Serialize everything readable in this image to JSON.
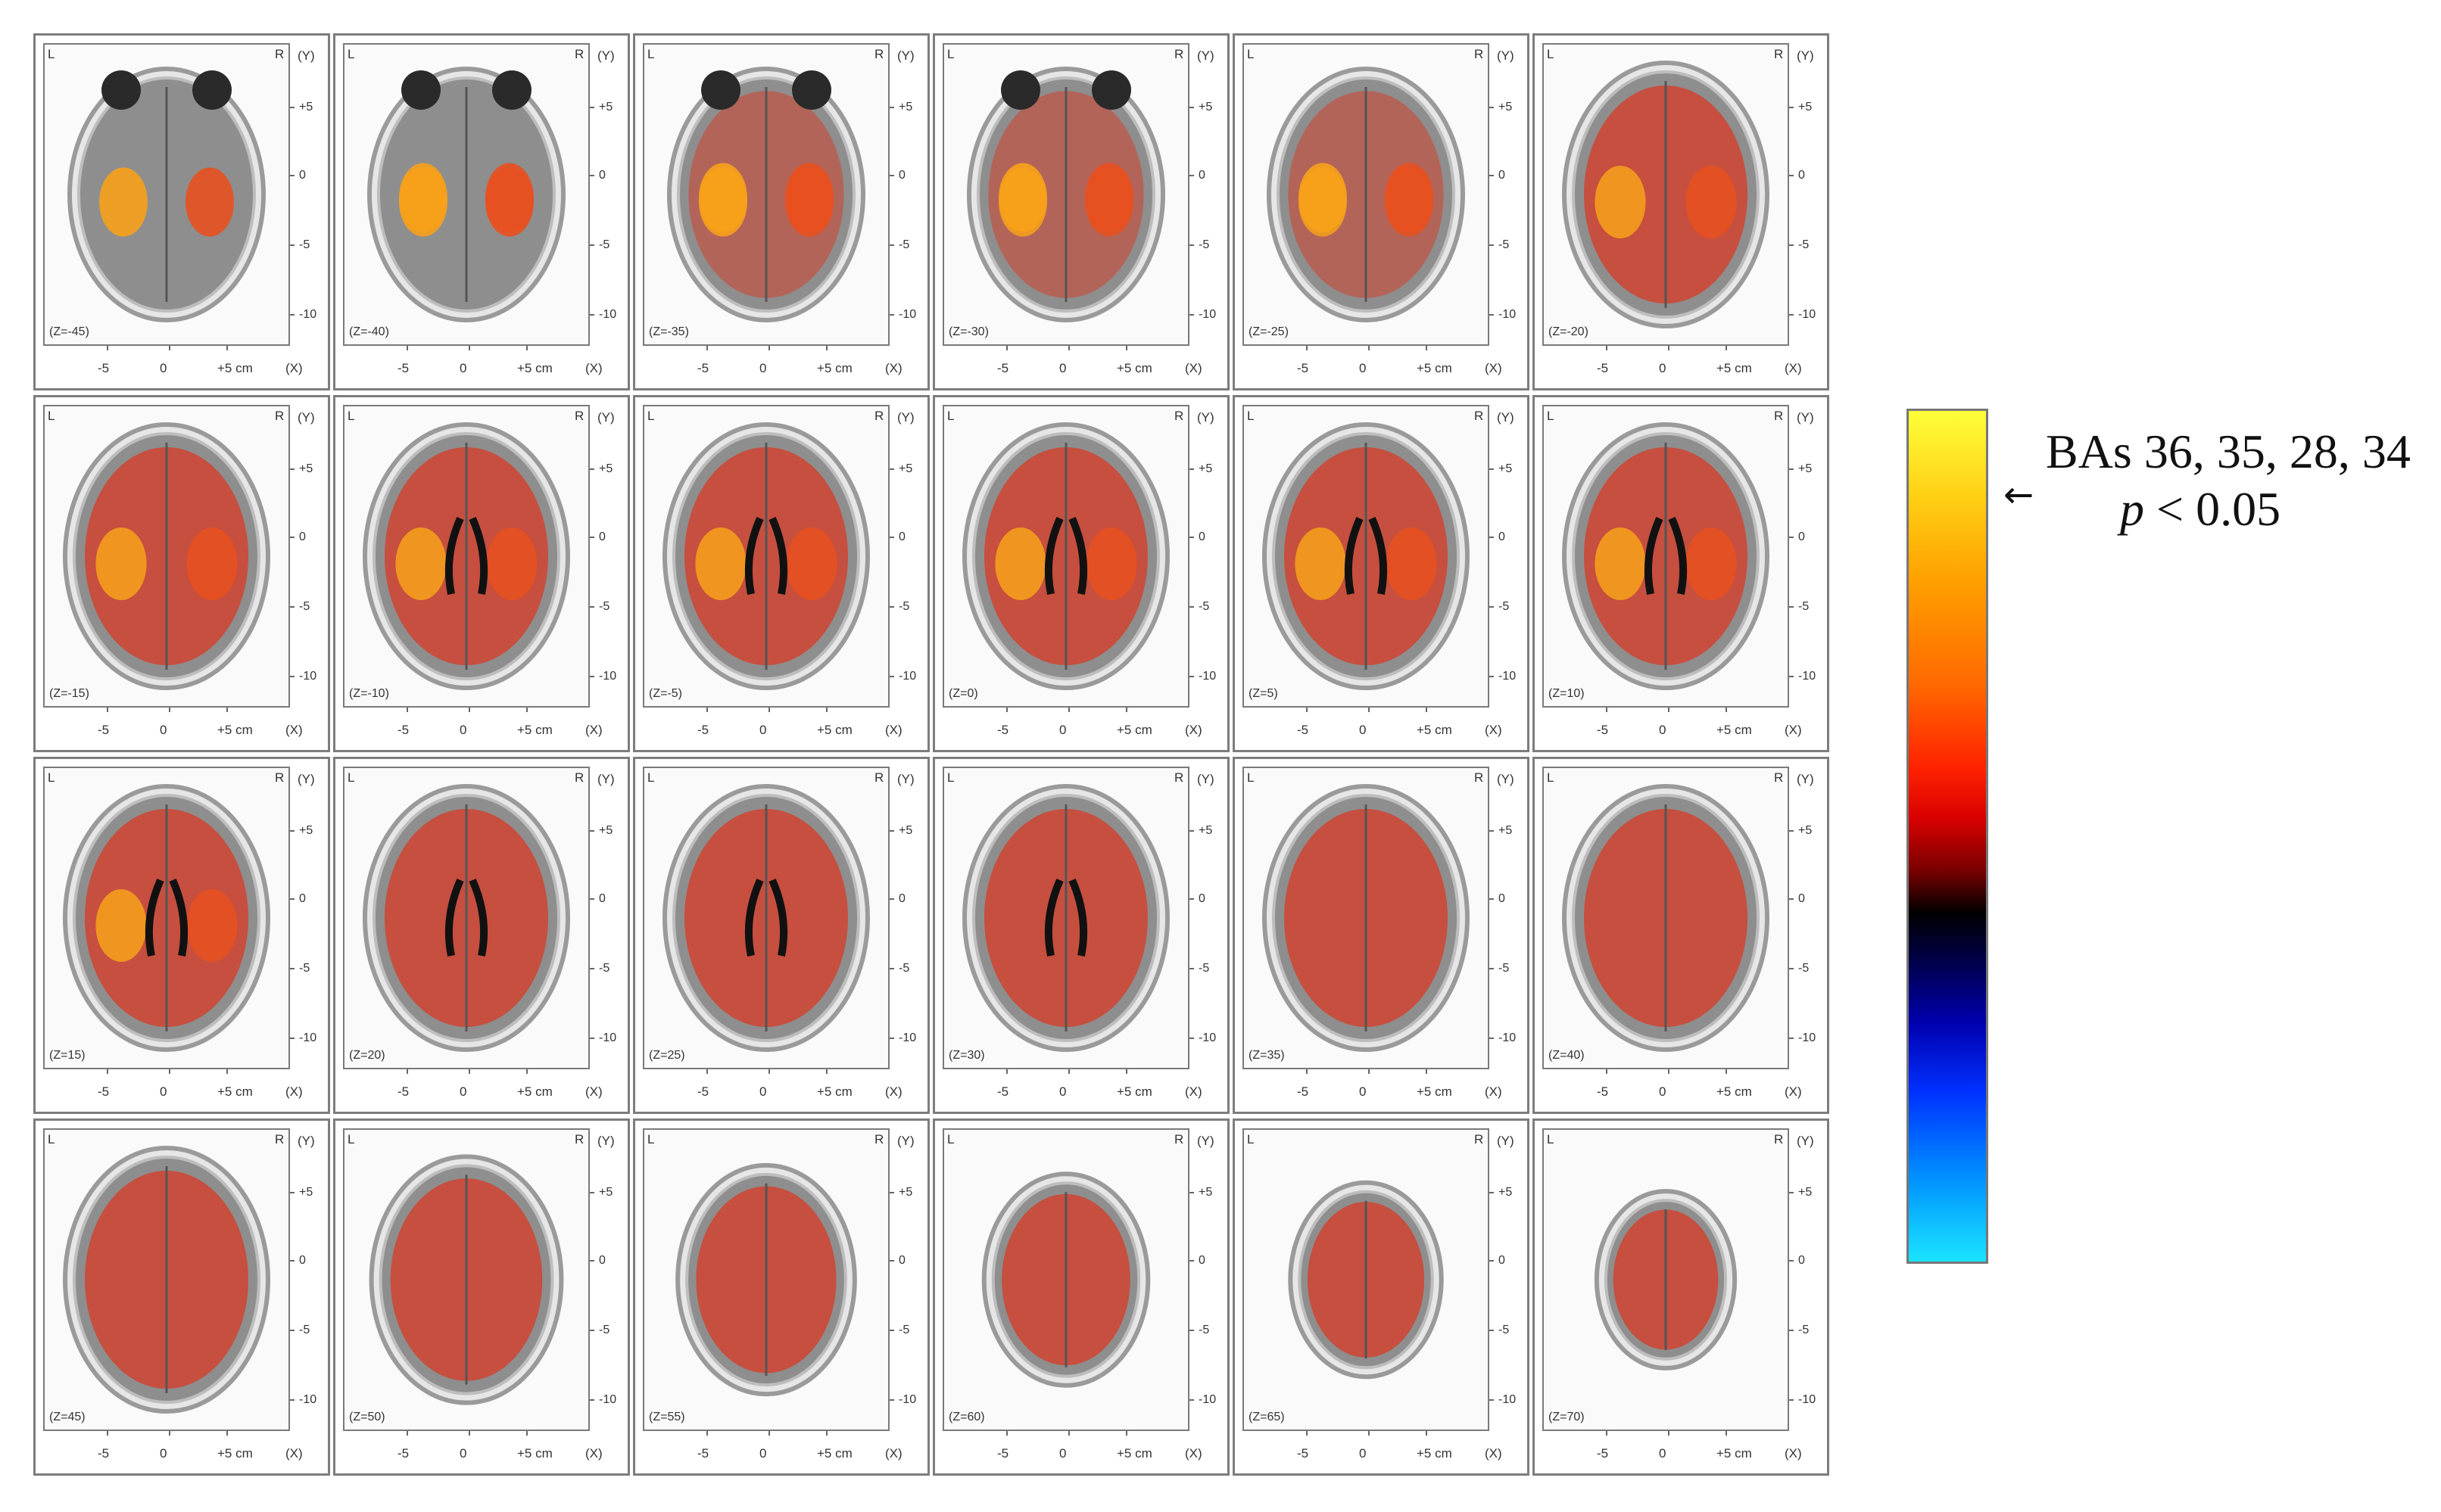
{
  "figure": {
    "orientation": {
      "left": "L",
      "right": "R"
    },
    "axes": {
      "y_label": "(Y)",
      "x_label": "(X)",
      "y_ticks": [
        "+5",
        "0",
        "-5",
        "-10"
      ],
      "x_ticks": [
        "-5",
        "0",
        "+5 cm"
      ]
    },
    "slices": [
      {
        "label": "(Z=-45)",
        "z": -45
      },
      {
        "label": "(Z=-40)",
        "z": -40
      },
      {
        "label": "(Z=-35)",
        "z": -35
      },
      {
        "label": "(Z=-30)",
        "z": -30
      },
      {
        "label": "(Z=-25)",
        "z": -25
      },
      {
        "label": "(Z=-20)",
        "z": -20
      },
      {
        "label": "(Z=-15)",
        "z": -15
      },
      {
        "label": "(Z=-10)",
        "z": -10
      },
      {
        "label": "(Z=-5)",
        "z": -5
      },
      {
        "label": "(Z=0)",
        "z": 0
      },
      {
        "label": "(Z=5)",
        "z": 5
      },
      {
        "label": "(Z=10)",
        "z": 10
      },
      {
        "label": "(Z=15)",
        "z": 15
      },
      {
        "label": "(Z=20)",
        "z": 20
      },
      {
        "label": "(Z=25)",
        "z": 25
      },
      {
        "label": "(Z=30)",
        "z": 30
      },
      {
        "label": "(Z=35)",
        "z": 35
      },
      {
        "label": "(Z=40)",
        "z": 40
      },
      {
        "label": "(Z=45)",
        "z": 45
      },
      {
        "label": "(Z=50)",
        "z": 50
      },
      {
        "label": "(Z=55)",
        "z": 55
      },
      {
        "label": "(Z=60)",
        "z": 60
      },
      {
        "label": "(Z=65)",
        "z": 65
      },
      {
        "label": "(Z=70)",
        "z": 70
      }
    ],
    "legend": {
      "title": "BAs 36, 35, 28, 34",
      "p_symbol": "p",
      "p_rest": " < 0.05",
      "arrow": "←",
      "colors": [
        "#ffff3a",
        "#ffa000",
        "#ff2200",
        "#000000",
        "#0000b0",
        "#19e4ff"
      ]
    }
  }
}
